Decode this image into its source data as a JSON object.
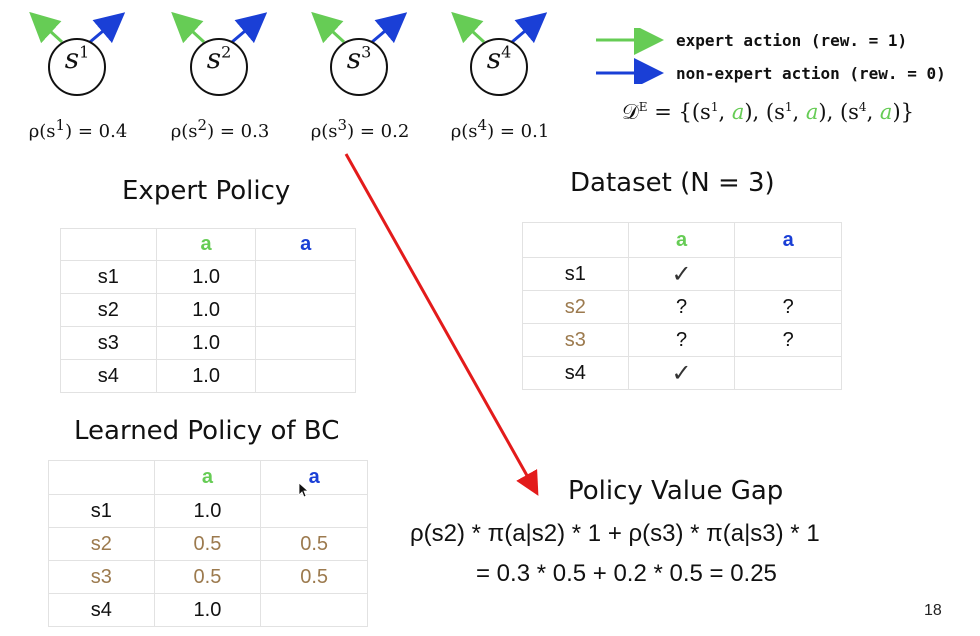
{
  "states": [
    {
      "base": "s",
      "sup": "1",
      "rho_prefix": "ρ(s",
      "rho_sup": "1",
      "rho_suffix": ") = 0.4"
    },
    {
      "base": "s",
      "sup": "2",
      "rho_prefix": "ρ(s",
      "rho_sup": "2",
      "rho_suffix": ") = 0.3"
    },
    {
      "base": "s",
      "sup": "3",
      "rho_prefix": "ρ(s",
      "rho_sup": "3",
      "rho_suffix": ") = 0.2"
    },
    {
      "base": "s",
      "sup": "4",
      "rho_prefix": "ρ(s",
      "rho_sup": "4",
      "rho_suffix": ") = 0.1"
    }
  ],
  "legend": {
    "expert": "expert action (rew. = 1)",
    "nonexpert": "non-expert action (rew. = 0)",
    "expert_color": "#66cc55",
    "nonexpert_color": "#1a3fd6"
  },
  "dataset_formula": {
    "lhs": "𝒟",
    "sup": "E",
    "rhs_parts": [
      "= {(s",
      "1",
      ", ",
      "a",
      "), (s",
      "1",
      ", ",
      "a",
      "), (s",
      "4",
      ", ",
      "a",
      ")}"
    ]
  },
  "expert_policy": {
    "title": "Expert Policy",
    "col_a": "a",
    "col_b": "a",
    "rows": [
      {
        "state": "s1",
        "a": "1.0",
        "b": ""
      },
      {
        "state": "s2",
        "a": "1.0",
        "b": ""
      },
      {
        "state": "s3",
        "a": "1.0",
        "b": ""
      },
      {
        "state": "s4",
        "a": "1.0",
        "b": ""
      }
    ]
  },
  "dataset": {
    "title": "Dataset (N = 3)",
    "col_a": "a",
    "col_b": "a",
    "rows": [
      {
        "state": "s1",
        "a": "✓",
        "b": ""
      },
      {
        "state": "s2",
        "a": "?",
        "b": "?"
      },
      {
        "state": "s3",
        "a": "?",
        "b": "?"
      },
      {
        "state": "s4",
        "a": "✓",
        "b": ""
      }
    ]
  },
  "learned_policy": {
    "title": "Learned Policy of BC",
    "col_a": "a",
    "col_b": "a",
    "rows": [
      {
        "state": "s1",
        "a": "1.0",
        "b": ""
      },
      {
        "state": "s2",
        "a": "0.5",
        "b": "0.5"
      },
      {
        "state": "s3",
        "a": "0.5",
        "b": "0.5"
      },
      {
        "state": "s4",
        "a": "1.0",
        "b": ""
      }
    ]
  },
  "gap": {
    "title": "Policy Value Gap",
    "line1": "ρ(s2) * π(a|s2) * 1 + ρ(s3) * π(a|s3) * 1",
    "line2": "=  0.3 * 0.5 + 0.2 * 0.5 = 0.25"
  },
  "page_number": "18",
  "colors": {
    "expert_green": "#66cc55",
    "nonexpert_blue": "#1a3fd6",
    "uncertain_brown": "#9c7a4e",
    "arrow_red": "#e31b1b"
  }
}
